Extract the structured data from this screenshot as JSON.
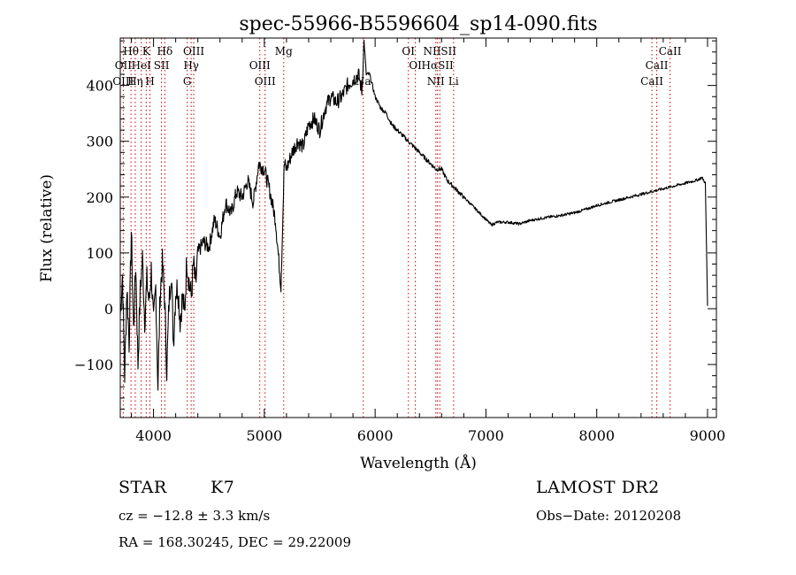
{
  "chart_data": {
    "type": "line",
    "title": "spec-55966-B5596604_sp14-090.fits",
    "xlabel": "Wavelength (Å)",
    "ylabel": "Flux (relative)",
    "xlim": [
      3700,
      9080
    ],
    "ylim": [
      -195,
      485
    ],
    "xticks": [
      4000,
      5000,
      6000,
      7000,
      8000,
      9000
    ],
    "yticks": [
      -100,
      0,
      100,
      200,
      300,
      400
    ],
    "series": [
      {
        "color": "#000000",
        "x": [
          3700,
          3720,
          3740,
          3760,
          3780,
          3800,
          3820,
          3840,
          3860,
          3880,
          3900,
          3920,
          3940,
          3960,
          3980,
          4000,
          4020,
          4040,
          4060,
          4080,
          4100,
          4120,
          4140,
          4160,
          4180,
          4200,
          4220,
          4240,
          4260,
          4280,
          4300,
          4320,
          4340,
          4360,
          4380,
          4400,
          4450,
          4500,
          4550,
          4600,
          4650,
          4700,
          4750,
          4800,
          4850,
          4900,
          4950,
          5000,
          5050,
          5100,
          5150,
          5180,
          5200,
          5250,
          5300,
          5350,
          5400,
          5450,
          5500,
          5550,
          5600,
          5650,
          5700,
          5750,
          5800,
          5850,
          5880,
          5900,
          5920,
          5950,
          6000,
          6050,
          6100,
          6150,
          6200,
          6250,
          6300,
          6350,
          6400,
          6450,
          6500,
          6550,
          6600,
          6650,
          6700,
          6750,
          6800,
          6850,
          6900,
          6950,
          7000,
          7050,
          7100,
          7200,
          7300,
          7400,
          7500,
          7600,
          7700,
          7800,
          7900,
          8000,
          8100,
          8200,
          8300,
          8400,
          8500,
          8600,
          8700,
          8800,
          8900,
          8950,
          8980,
          9000
        ],
        "y": [
          -10,
          60,
          -120,
          40,
          -60,
          140,
          -40,
          80,
          -100,
          30,
          90,
          -20,
          50,
          10,
          70,
          -30,
          40,
          -140,
          30,
          80,
          20,
          -110,
          10,
          70,
          -60,
          30,
          40,
          -20,
          20,
          -10,
          90,
          50,
          20,
          80,
          40,
          100,
          120,
          110,
          160,
          130,
          190,
          170,
          210,
          200,
          230,
          190,
          260,
          250,
          210,
          160,
          40,
          260,
          250,
          280,
          300,
          290,
          330,
          340,
          320,
          360,
          380,
          370,
          380,
          400,
          410,
          420,
          390,
          480,
          420,
          420,
          380,
          360,
          350,
          330,
          320,
          310,
          300,
          290,
          280,
          270,
          260,
          250,
          250,
          230,
          220,
          210,
          200,
          190,
          180,
          170,
          160,
          150,
          155,
          155,
          152,
          158,
          162,
          165,
          168,
          172,
          178,
          185,
          190,
          195,
          200,
          205,
          210,
          215,
          220,
          225,
          230,
          235,
          225,
          5
        ]
      }
    ],
    "spectral_lines": [
      {
        "label": "Hθ",
        "row": 0,
        "wavelength": 3797
      },
      {
        "label": "K",
        "row": 0,
        "wavelength": 3934
      },
      {
        "label": "Hδ",
        "row": 0,
        "wavelength": 4102
      },
      {
        "label": "OIII",
        "row": 0,
        "wavelength": 4363
      },
      {
        "label": "Mg",
        "row": 0,
        "wavelength": 5175
      },
      {
        "label": "OI",
        "row": 0,
        "wavelength": 6300
      },
      {
        "label": "NIISII",
        "row": 0,
        "wavelength": 6584
      },
      {
        "label": "CaII",
        "row": 0,
        "wavelength": 8662
      },
      {
        "label": "OII",
        "row": 1,
        "wavelength": 3727
      },
      {
        "label": "HeI",
        "row": 1,
        "wavelength": 3889
      },
      {
        "label": "SII",
        "row": 1,
        "wavelength": 4072
      },
      {
        "label": "Hγ",
        "row": 1,
        "wavelength": 4340
      },
      {
        "label": "OIII",
        "row": 1,
        "wavelength": 4959
      },
      {
        "label": "OI",
        "row": 1,
        "wavelength": 6363
      },
      {
        "label": "HαSII",
        "row": 1,
        "wavelength": 6563
      },
      {
        "label": "CaII",
        "row": 1,
        "wavelength": 8542
      },
      {
        "label": "OIII",
        "row": 2,
        "wavelength": 3727
      },
      {
        "label": "Hη",
        "row": 2,
        "wavelength": 3835
      },
      {
        "label": "H",
        "row": 2,
        "wavelength": 3968
      },
      {
        "label": "G",
        "row": 2,
        "wavelength": 4304
      },
      {
        "label": "OIII",
        "row": 2,
        "wavelength": 5007
      },
      {
        "label": "Na",
        "row": 2,
        "wavelength": 5893
      },
      {
        "label": "NII",
        "row": 2,
        "wavelength": 6548
      },
      {
        "label": "Li",
        "row": 2,
        "wavelength": 6708
      },
      {
        "label": "CaII",
        "row": 2,
        "wavelength": 8498
      }
    ],
    "line_color": "#cc0000",
    "grid": false,
    "legend": "none"
  },
  "footer": {
    "object_class": "STAR",
    "subclass": "K7",
    "survey": "LAMOST DR2",
    "redshift_text": "cz = −12.8 ± 3.3 km/s",
    "obs_date_text": "Obs−Date: 20120208",
    "coords_text": "RA = 168.30245, DEC =  29.22009"
  }
}
